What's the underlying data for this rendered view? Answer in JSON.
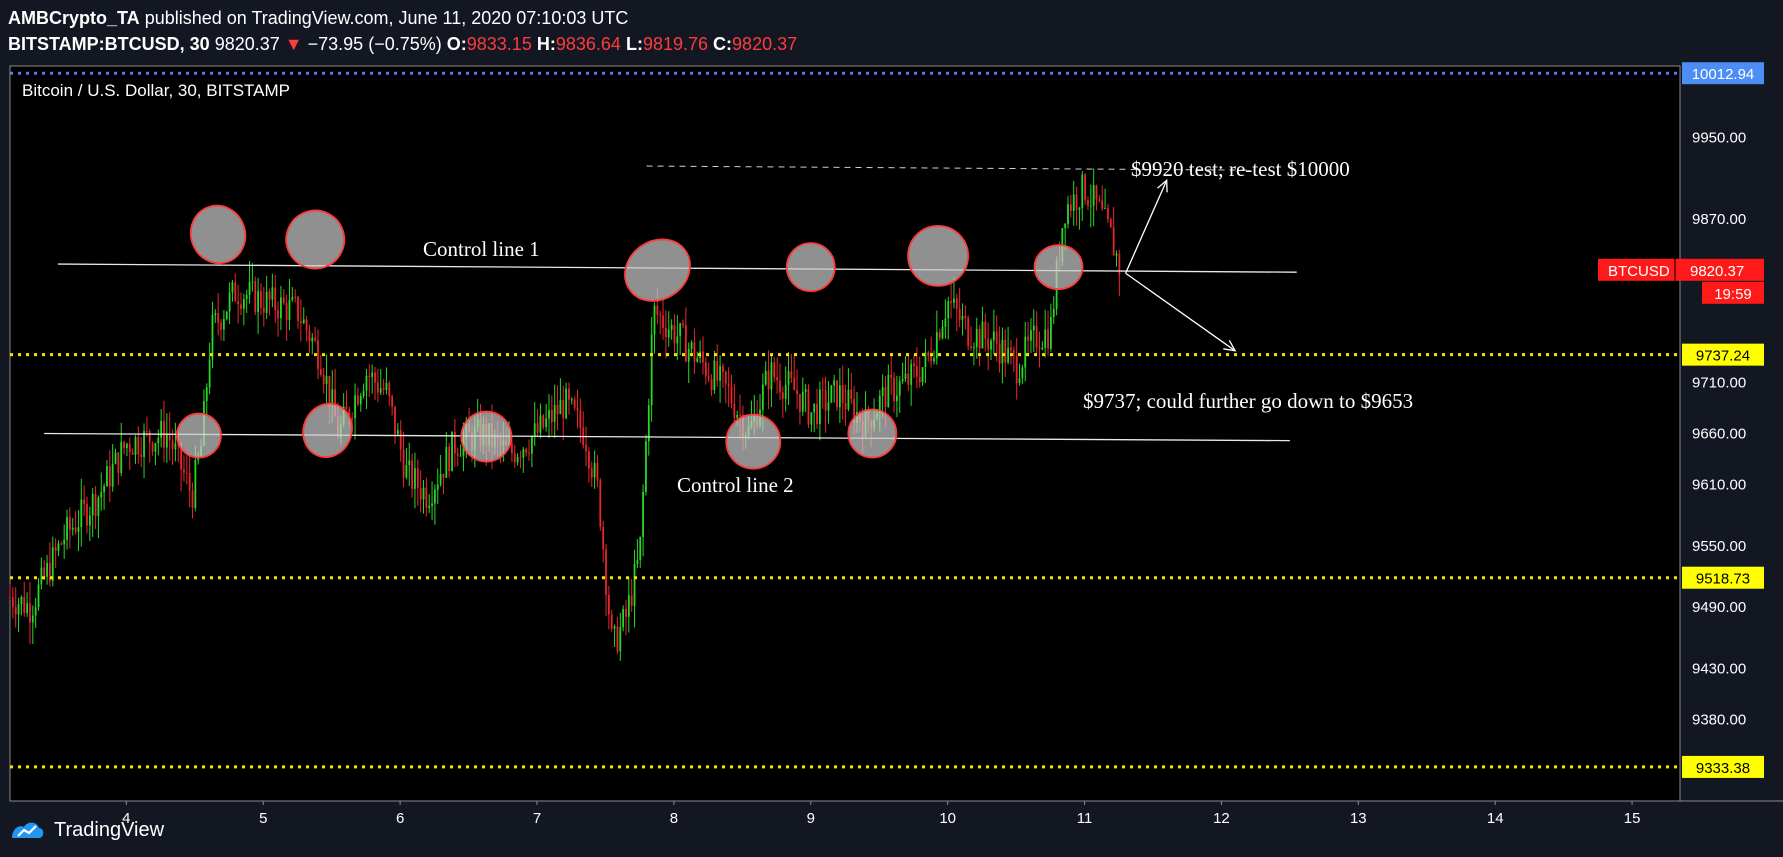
{
  "header": {
    "author": "AMBCrypto_TA",
    "published": "published on TradingView.com, June 11, 2020 07:10:03 UTC",
    "symbol": "BITSTAMP:BTCUSD, 30",
    "last": "9820.37",
    "change_arrow": "▼",
    "change": "−73.95 (−0.75%)",
    "o_label": "O:",
    "o_value": "9833.15",
    "h_label": "H:",
    "h_value": "9836.64",
    "l_label": "L:",
    "l_value": "9819.76",
    "c_label": "C:",
    "c_value": "9820.37"
  },
  "footer": {
    "brand": "TradingView",
    "icon": "tradingview-logo-icon"
  },
  "colors": {
    "up": "#26d926",
    "down": "#e8262b",
    "level_line": "#f7e400",
    "top_line": "#4f7cff",
    "price_badge": "#ff1a1a",
    "level_badge": "#ffff00",
    "top_badge": "#4c8df6",
    "circle_stroke": "#ff3b3b"
  },
  "chart_data": {
    "type": "candlestick",
    "title": "Bitcoin / U.S. Dollar, 30, BITSTAMP",
    "x_ticks": [
      "4",
      "5",
      "6",
      "7",
      "8",
      "9",
      "10",
      "11",
      "12",
      "13",
      "14",
      "15"
    ],
    "xlim": [
      3.15,
      15.35
    ],
    "y_ticks": [
      9380,
      9430,
      9490,
      9550,
      9610,
      9660,
      9710,
      9870,
      9950
    ],
    "y_tick_labels": [
      "9380.00",
      "9430.00",
      "9490.00",
      "9550.00",
      "9610.00",
      "9660.00",
      "9710.00",
      "9870.00",
      "9950.00"
    ],
    "ylim": [
      9300,
      10020
    ],
    "levels": [
      {
        "value": 10012.94,
        "label": "10012.94",
        "style": "blue-dotted"
      },
      {
        "value": 9737.24,
        "label": "9737.24",
        "style": "yellow-dotted"
      },
      {
        "value": 9518.73,
        "label": "9518.73",
        "style": "yellow-dotted"
      },
      {
        "value": 9333.38,
        "label": "9333.38",
        "style": "yellow-dotted"
      }
    ],
    "current_price": {
      "symbol": "BTCUSD",
      "value": 9820.37,
      "label": "9820.37",
      "countdown": "19:59"
    },
    "control_lines": [
      {
        "label": "Control line 1",
        "from": [
          3.5,
          9826
        ],
        "to": [
          12.55,
          9818
        ]
      },
      {
        "label": "Control line 2",
        "from": [
          3.4,
          9660
        ],
        "to": [
          12.5,
          9653
        ]
      }
    ],
    "annotations": [
      {
        "text": "$9920 test; re-test $10000",
        "x": 11.3,
        "y": 9948
      },
      {
        "text": "$9737; could further go down to $9653",
        "x": 10.95,
        "y": 9700
      }
    ],
    "arrows": [
      {
        "from": [
          11.3,
          9817
        ],
        "to": [
          11.6,
          9908
        ]
      },
      {
        "from": [
          11.3,
          9817
        ],
        "to": [
          12.1,
          9741
        ]
      }
    ],
    "dashed_targets": [
      {
        "from": [
          7.8,
          9922
        ],
        "to": [
          12.2,
          9918
        ]
      }
    ],
    "circles": [
      {
        "x": 4.53,
        "y": 9658
      },
      {
        "x": 4.67,
        "y": 9855
      },
      {
        "x": 5.38,
        "y": 9850
      },
      {
        "x": 5.47,
        "y": 9663
      },
      {
        "x": 6.63,
        "y": 9657
      },
      {
        "x": 7.88,
        "y": 9820
      },
      {
        "x": 8.58,
        "y": 9652
      },
      {
        "x": 9.0,
        "y": 9823
      },
      {
        "x": 9.45,
        "y": 9660
      },
      {
        "x": 9.93,
        "y": 9834
      },
      {
        "x": 10.81,
        "y": 9823
      }
    ],
    "candles_anchor": [
      [
        3.15,
        9500
      ],
      [
        3.3,
        9490
      ],
      [
        3.55,
        9560
      ],
      [
        3.8,
        9600
      ],
      [
        4.0,
        9650
      ],
      [
        4.3,
        9660
      ],
      [
        4.48,
        9600
      ],
      [
        4.55,
        9650
      ],
      [
        4.62,
        9760
      ],
      [
        4.8,
        9800
      ],
      [
        5.0,
        9790
      ],
      [
        5.25,
        9780
      ],
      [
        5.42,
        9735
      ],
      [
        5.55,
        9660
      ],
      [
        5.75,
        9720
      ],
      [
        5.9,
        9700
      ],
      [
        6.05,
        9620
      ],
      [
        6.2,
        9600
      ],
      [
        6.4,
        9650
      ],
      [
        6.6,
        9660
      ],
      [
        6.8,
        9640
      ],
      [
        7.0,
        9660
      ],
      [
        7.2,
        9690
      ],
      [
        7.35,
        9660
      ],
      [
        7.45,
        9600
      ],
      [
        7.55,
        9450
      ],
      [
        7.65,
        9480
      ],
      [
        7.75,
        9540
      ],
      [
        7.85,
        9780
      ],
      [
        8.0,
        9760
      ],
      [
        8.2,
        9730
      ],
      [
        8.4,
        9700
      ],
      [
        8.55,
        9660
      ],
      [
        8.7,
        9720
      ],
      [
        8.9,
        9700
      ],
      [
        9.0,
        9680
      ],
      [
        9.2,
        9700
      ],
      [
        9.4,
        9670
      ],
      [
        9.55,
        9700
      ],
      [
        9.7,
        9710
      ],
      [
        9.85,
        9730
      ],
      [
        10.0,
        9790
      ],
      [
        10.15,
        9760
      ],
      [
        10.35,
        9750
      ],
      [
        10.5,
        9725
      ],
      [
        10.65,
        9755
      ],
      [
        10.75,
        9760
      ],
      [
        10.85,
        9880
      ],
      [
        11.0,
        9900
      ],
      [
        11.1,
        9880
      ],
      [
        11.2,
        9850
      ],
      [
        11.26,
        9820
      ]
    ]
  }
}
